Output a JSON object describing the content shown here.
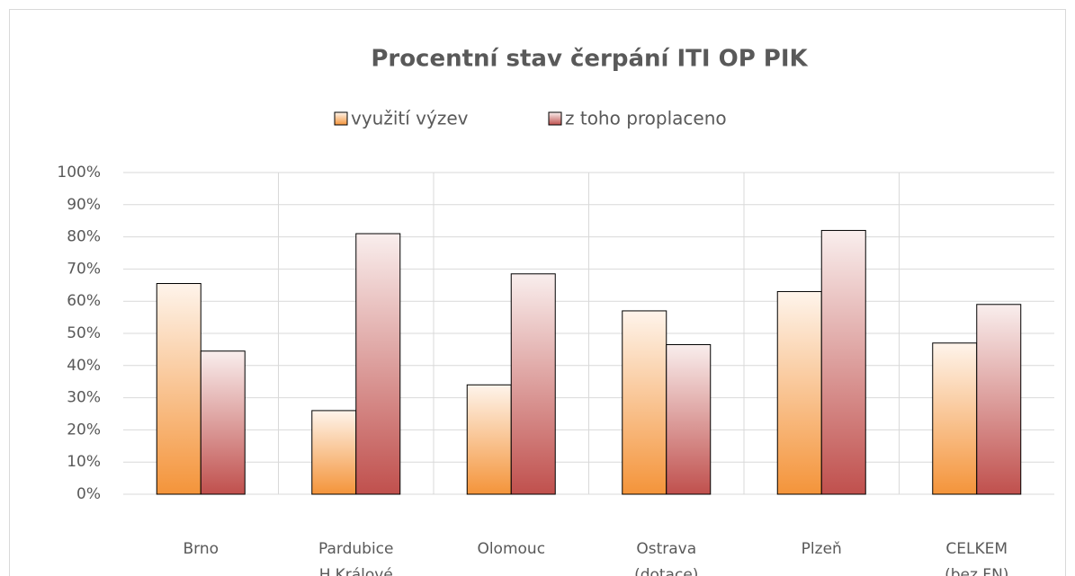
{
  "chart_data": {
    "type": "bar",
    "title": "Procentní stav čerpání ITI OP PIK",
    "categories": [
      "Brno",
      "Pardubice\nH.Králové",
      "Olomouc",
      "Ostrava\n(dotace)",
      "Plzeň",
      "CELKEM\n(bez FN)"
    ],
    "series": [
      {
        "name": "využití výzev",
        "color": "#f4943a",
        "values": [
          65.5,
          26,
          34,
          57,
          63,
          47
        ]
      },
      {
        "name": "z toho proplaceno",
        "color": "#c0504d",
        "values": [
          44.5,
          81,
          68.5,
          46.5,
          82,
          59
        ]
      }
    ],
    "ylim": [
      0,
      100
    ],
    "yticks": [
      {
        "value": 0,
        "label": "0%"
      },
      {
        "value": 10,
        "label": "10%"
      },
      {
        "value": 20,
        "label": "20%"
      },
      {
        "value": 30,
        "label": "30%"
      },
      {
        "value": 40,
        "label": "40%"
      },
      {
        "value": 50,
        "label": "50%"
      },
      {
        "value": 60,
        "label": "60%"
      },
      {
        "value": 70,
        "label": "70%"
      },
      {
        "value": 80,
        "label": "80%"
      },
      {
        "value": 90,
        "label": "90%"
      },
      {
        "value": 100,
        "label": "100%"
      }
    ],
    "grid": true,
    "legend": "top"
  }
}
